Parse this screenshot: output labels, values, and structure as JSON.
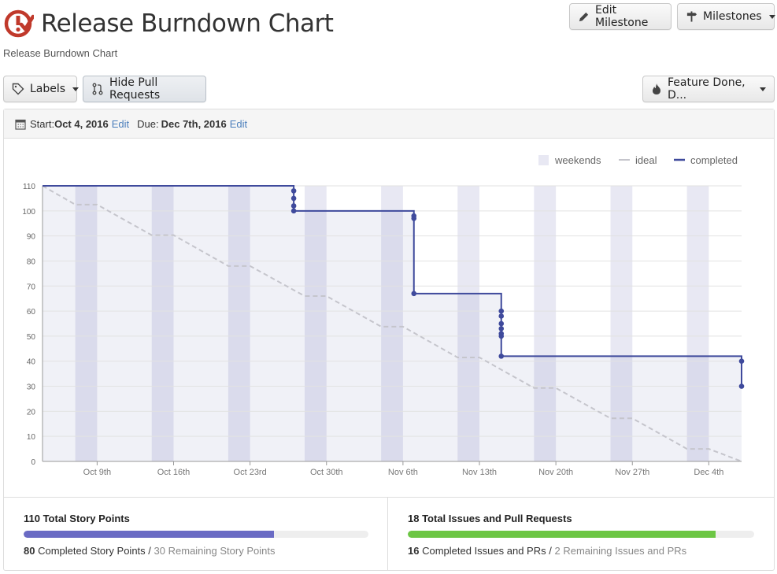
{
  "header": {
    "title": "Release Burndown Chart",
    "subtitle": "Release Burndown Chart"
  },
  "toolbar": {
    "edit_milestone": "Edit Milestone",
    "milestones": "Milestones",
    "labels": "Labels",
    "hide_pull_requests": "Hide Pull Requests",
    "filter": "Feature Done, D..."
  },
  "dates": {
    "start_label": "Start:",
    "start": "Oct 4, 2016",
    "due_label": "Due:",
    "due": "Dec 7th, 2016",
    "edit": "Edit"
  },
  "colors": {
    "brand": "#c0392b",
    "completed": "#3f4a9c",
    "ideal": "#c5c5cc",
    "weekend": "#e8e8f3",
    "story_bar": "#6a6bc4",
    "issues_bar": "#6cc644"
  },
  "chart_data": {
    "type": "line",
    "title": "",
    "xlabel": "",
    "ylabel": "",
    "ylim": [
      0,
      110
    ],
    "yticks": [
      0,
      10,
      20,
      30,
      40,
      50,
      60,
      70,
      80,
      90,
      100,
      110
    ],
    "x_ticks": [
      "Oct 9th",
      "Oct 16th",
      "Oct 23rd",
      "Oct 30th",
      "Nov 6th",
      "Nov 13th",
      "Nov 20th",
      "Nov 27th",
      "Dec 4th"
    ],
    "x_tick_dates": [
      "2016-10-09",
      "2016-10-16",
      "2016-10-23",
      "2016-10-30",
      "2016-11-06",
      "2016-11-13",
      "2016-11-20",
      "2016-11-27",
      "2016-12-04"
    ],
    "xlim": [
      "2016-10-04",
      "2016-12-07"
    ],
    "legend": {
      "position": "top-right",
      "items": [
        "weekends",
        "ideal",
        "completed"
      ]
    },
    "weekends": [
      [
        "2016-10-07",
        "2016-10-09"
      ],
      [
        "2016-10-14",
        "2016-10-16"
      ],
      [
        "2016-10-21",
        "2016-10-23"
      ],
      [
        "2016-10-28",
        "2016-10-30"
      ],
      [
        "2016-11-04",
        "2016-11-06"
      ],
      [
        "2016-11-11",
        "2016-11-13"
      ],
      [
        "2016-11-18",
        "2016-11-20"
      ],
      [
        "2016-11-25",
        "2016-11-27"
      ],
      [
        "2016-12-02",
        "2016-12-04"
      ]
    ],
    "series": [
      {
        "name": "ideal",
        "style": "dashed",
        "points": [
          [
            "2016-10-04",
            110
          ],
          [
            "2016-10-07",
            102.5
          ],
          [
            "2016-10-09",
            102.5
          ],
          [
            "2016-10-14",
            90.3
          ],
          [
            "2016-10-16",
            90.3
          ],
          [
            "2016-10-21",
            78
          ],
          [
            "2016-10-23",
            78
          ],
          [
            "2016-10-28",
            66
          ],
          [
            "2016-10-30",
            66
          ],
          [
            "2016-11-04",
            53.8
          ],
          [
            "2016-11-06",
            53.8
          ],
          [
            "2016-11-11",
            41.5
          ],
          [
            "2016-11-13",
            41.5
          ],
          [
            "2016-11-18",
            29.3
          ],
          [
            "2016-11-20",
            29.3
          ],
          [
            "2016-11-25",
            17.2
          ],
          [
            "2016-11-27",
            17.2
          ],
          [
            "2016-12-02",
            5
          ],
          [
            "2016-12-04",
            5
          ],
          [
            "2016-12-07",
            0
          ]
        ]
      },
      {
        "name": "completed",
        "style": "step",
        "points": [
          [
            "2016-10-04",
            110
          ],
          [
            "2016-10-27",
            108
          ],
          [
            "2016-10-27",
            105
          ],
          [
            "2016-10-27",
            102
          ],
          [
            "2016-10-27",
            100
          ],
          [
            "2016-11-07",
            98
          ],
          [
            "2016-11-07",
            97
          ],
          [
            "2016-11-07",
            67
          ],
          [
            "2016-11-15",
            60
          ],
          [
            "2016-11-15",
            58
          ],
          [
            "2016-11-15",
            55
          ],
          [
            "2016-11-15",
            53
          ],
          [
            "2016-11-15",
            51
          ],
          [
            "2016-11-15",
            50
          ],
          [
            "2016-11-15",
            42
          ],
          [
            "2016-12-07",
            40
          ],
          [
            "2016-12-07",
            30
          ]
        ]
      }
    ]
  },
  "stats": {
    "story": {
      "title": "110 Total Story Points",
      "completed_value": "80",
      "completed_text": "Completed Story Points",
      "separator": "/",
      "remaining_text": "30 Remaining Story Points",
      "fraction": 0.727
    },
    "issues": {
      "title": "18 Total Issues and Pull Requests",
      "completed_value": "16",
      "completed_text": "Completed Issues and PRs",
      "separator": "/",
      "remaining_text": "2 Remaining Issues and PRs",
      "fraction": 0.889
    }
  }
}
